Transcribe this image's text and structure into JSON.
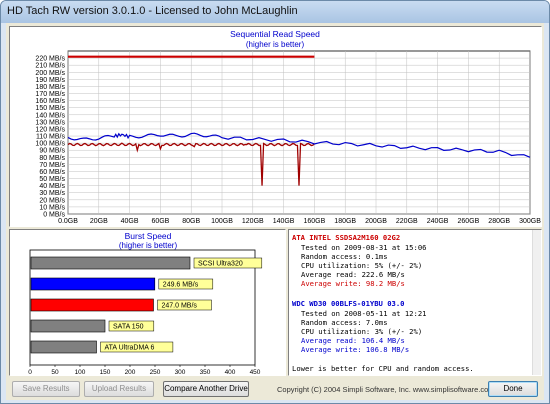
{
  "window": {
    "title": "HD Tach RW version 3.0.1.0 - Licensed to John McLaughlin"
  },
  "colors": {
    "drive1": "#cc0000",
    "drive2": "#0000cc",
    "grid": "#c0c0c0"
  },
  "seq_chart": {
    "title": "Sequential Read Speed",
    "subtitle": "(higher is better)",
    "y_ticks": [
      "0 MB/s",
      "10 MB/s",
      "20 MB/s",
      "30 MB/s",
      "40 MB/s",
      "50 MB/s",
      "60 MB/s",
      "70 MB/s",
      "80 MB/s",
      "90 MB/s",
      "100 MB/s",
      "110 MB/s",
      "120 MB/s",
      "130 MB/s",
      "140 MB/s",
      "150 MB/s",
      "160 MB/s",
      "170 MB/s",
      "180 MB/s",
      "190 MB/s",
      "200 MB/s",
      "210 MB/s",
      "220 MB/s"
    ],
    "x_ticks": [
      "0.0GB",
      "20GB",
      "40GB",
      "60GB",
      "80GB",
      "100GB",
      "120GB",
      "140GB",
      "160GB",
      "180GB",
      "200GB",
      "220GB",
      "240GB",
      "260GB",
      "280GB",
      "300GB"
    ]
  },
  "chart_data": [
    {
      "type": "line",
      "title": "Sequential Read Speed",
      "subtitle": "(higher is better)",
      "xlabel": "",
      "ylabel": "",
      "xlim": [
        0,
        300
      ],
      "ylim": [
        0,
        230
      ],
      "grid": true,
      "series": [
        {
          "name": "ATA INTEL SSDSA2M160 02G2",
          "points": [
            [
              0,
              222
            ],
            [
              160,
              222
            ]
          ],
          "dips": [
            [
              35,
              100
            ],
            [
              45,
              90
            ],
            [
              60,
              92
            ],
            [
              82,
              95
            ],
            [
              115,
              98
            ],
            [
              126,
              40
            ],
            [
              150,
              40
            ]
          ],
          "base_write": [
            [
              0,
              98
            ],
            [
              160,
              98
            ]
          ]
        },
        {
          "name": "WDC WD30 00BLFS-01YBU 03.0",
          "points": [
            [
              0,
              108
            ],
            [
              10,
              105
            ],
            [
              20,
              107
            ],
            [
              30,
              110
            ],
            [
              35,
              112
            ],
            [
              40,
              109
            ],
            [
              50,
              110
            ],
            [
              60,
              112
            ],
            [
              70,
              110
            ],
            [
              80,
              112
            ],
            [
              90,
              111
            ],
            [
              100,
              108
            ],
            [
              120,
              106
            ],
            [
              140,
              104
            ],
            [
              160,
              101
            ],
            [
              180,
              99
            ],
            [
              200,
              97
            ],
            [
              220,
              94
            ],
            [
              240,
              92
            ],
            [
              260,
              90
            ],
            [
              280,
              88
            ],
            [
              300,
              80
            ]
          ]
        }
      ]
    },
    {
      "type": "bar",
      "title": "Burst Speed",
      "subtitle": "(higher is better)",
      "xlim": [
        0,
        450
      ],
      "x_ticks": [
        "0",
        "50",
        "100",
        "150",
        "200",
        "250",
        "300",
        "350",
        "400",
        "450"
      ],
      "bars": [
        {
          "label": "SCSI Ultra320",
          "value": 320,
          "color": "#808080"
        },
        {
          "label": "249.6 MB/s",
          "value": 249.6,
          "color": "#0000ff"
        },
        {
          "label": "247.0 MB/s",
          "value": 247.0,
          "color": "#ff0000"
        },
        {
          "label": "SATA 150",
          "value": 150,
          "color": "#808080"
        },
        {
          "label": "ATA UltraDMA 6",
          "value": 133,
          "color": "#808080"
        }
      ]
    }
  ],
  "info": {
    "drive1_name": "ATA INTEL SSDSA2M160 02G2",
    "drive1_lines": [
      "Tested on 2009-08-31 at 15:06",
      "Random access: 0.1ms",
      "CPU utilization: 5% (+/- 2%)",
      "Average read: 222.6 MB/s"
    ],
    "drive1_write": "Average write: 98.2 MB/s",
    "drive2_name": "WDC WD30 00BLFS-01YBU 03.0",
    "drive2_lines": [
      "Tested on 2008-05-11 at 12:21",
      "Random access: 7.0ms",
      "CPU utilization: 3% (+/- 2%)"
    ],
    "drive2_blue": [
      "Average read: 106.4 MB/s",
      "Average write: 106.8 MB/s"
    ],
    "footer": "Lower is better for CPU and random access."
  },
  "buttons": {
    "save": "Save Results",
    "upload": "Upload Results",
    "compare": "Compare Another Drive",
    "done": "Done"
  },
  "copyright": "Copyright (C) 2004 Simpli Software, Inc. www.simplisoftware.com"
}
